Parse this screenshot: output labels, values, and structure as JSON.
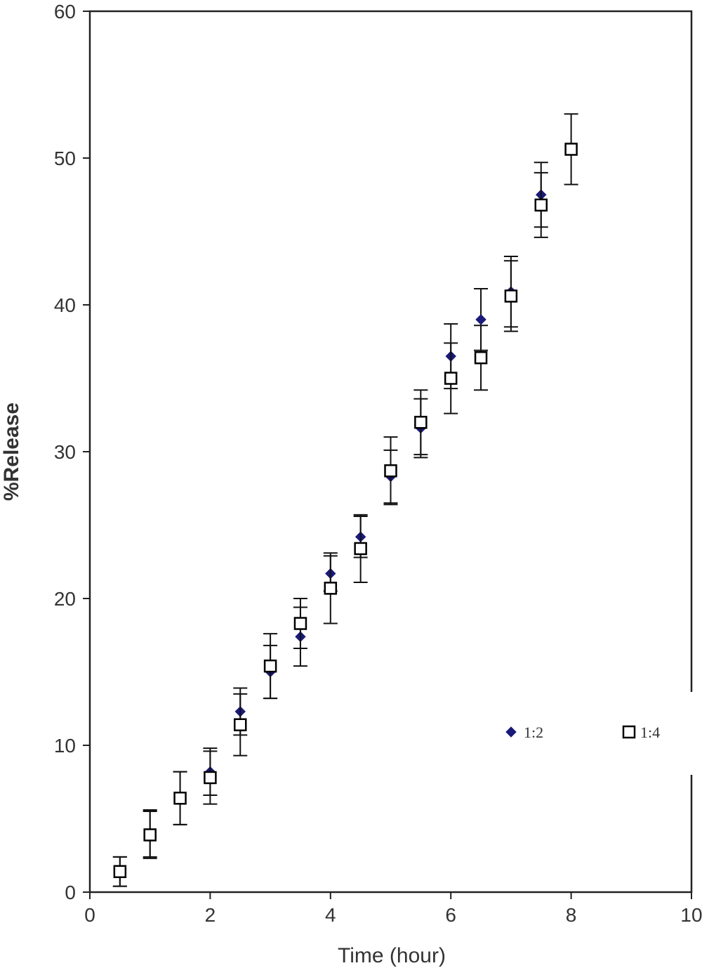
{
  "chart_data": {
    "type": "scatter",
    "title": "",
    "xlabel": "Time (hour)",
    "ylabel": "%Release",
    "xlim": [
      0,
      10
    ],
    "ylim": [
      0,
      60
    ],
    "xticks": [
      0,
      2,
      4,
      6,
      8,
      10
    ],
    "yticks": [
      0,
      10,
      20,
      30,
      40,
      50,
      60
    ],
    "grid": false,
    "legend_position": "right",
    "series": [
      {
        "name": "1:2",
        "marker": "diamond",
        "color": "#1a1a7a",
        "x": [
          0.5,
          1,
          1.5,
          2,
          2.5,
          3,
          3.5,
          4,
          4.5,
          5,
          5.5,
          6,
          6.5,
          7,
          7.5
        ],
        "y": [
          1.4,
          4.0,
          6.4,
          8.2,
          12.3,
          15.0,
          17.4,
          21.7,
          24.2,
          28.3,
          31.6,
          36.5,
          39.0,
          40.9,
          47.5
        ],
        "err": [
          1.0,
          1.6,
          1.8,
          1.6,
          1.6,
          1.8,
          2.0,
          1.2,
          1.4,
          1.8,
          2.0,
          2.2,
          2.1,
          2.4,
          2.2
        ]
      },
      {
        "name": "1:4",
        "marker": "square-open",
        "color": "#000000",
        "x": [
          0.5,
          1,
          1.5,
          2,
          2.5,
          3,
          3.5,
          4,
          4.5,
          5,
          5.5,
          6,
          6.5,
          7,
          7.5,
          8
        ],
        "y": [
          1.4,
          3.9,
          6.4,
          7.8,
          11.4,
          15.4,
          18.3,
          20.7,
          23.4,
          28.7,
          32.0,
          35.0,
          36.4,
          40.6,
          46.8,
          50.6
        ],
        "err": [
          1.0,
          1.6,
          1.8,
          1.8,
          2.1,
          2.2,
          1.7,
          2.4,
          2.3,
          2.3,
          2.2,
          2.4,
          2.2,
          2.4,
          2.2,
          2.4
        ]
      }
    ]
  }
}
